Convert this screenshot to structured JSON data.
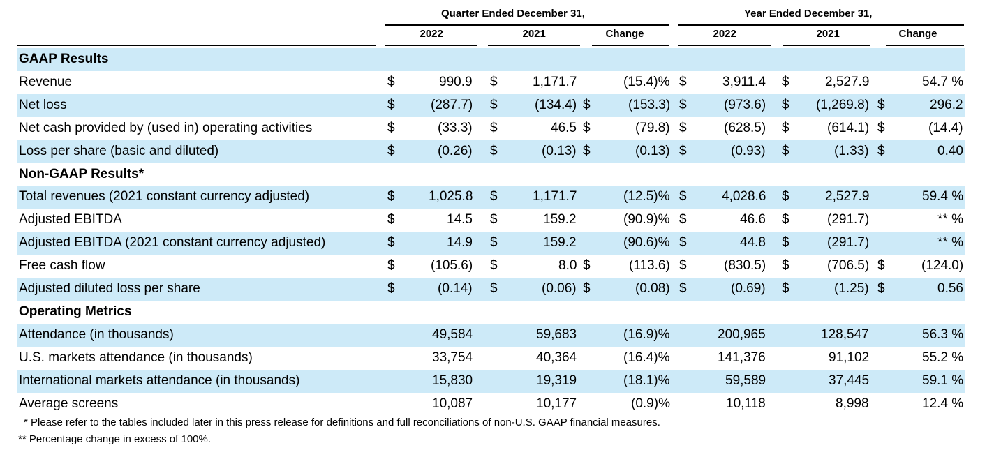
{
  "header": {
    "quarter_group": "Quarter Ended December 31,",
    "year_group": "Year Ended December 31,",
    "columns": [
      "2022",
      "2021",
      "Change",
      "2022",
      "2021",
      "Change"
    ]
  },
  "row_band_color": "#cdeaf8",
  "rows": [
    {
      "type": "section",
      "label": "GAAP Results"
    },
    {
      "type": "data",
      "label": "Revenue",
      "cells": [
        "$",
        "990.9",
        "$",
        "1,171.7",
        "",
        "(15.4)%",
        "$",
        "3,911.4",
        "$",
        "2,527.9",
        "",
        "54.7 %"
      ]
    },
    {
      "type": "data",
      "label": "Net loss",
      "cells": [
        "$",
        "(287.7)",
        "$",
        "(134.4)",
        "$",
        "(153.3)",
        "$",
        "(973.6)",
        "$",
        "(1,269.8)",
        "$",
        "296.2"
      ]
    },
    {
      "type": "data",
      "label": "Net cash provided by (used in) operating activities",
      "cells": [
        "$",
        "(33.3)",
        "$",
        "46.5",
        "$",
        "(79.8)",
        "$",
        "(628.5)",
        "$",
        "(614.1)",
        "$",
        "(14.4)"
      ]
    },
    {
      "type": "data",
      "label": "Loss per share (basic and diluted)",
      "cells": [
        "$",
        "(0.26)",
        "$",
        "(0.13)",
        "$",
        "(0.13)",
        "$",
        "(0.93)",
        "$",
        "(1.33)",
        "$",
        "0.40"
      ]
    },
    {
      "type": "section",
      "label": "Non-GAAP Results*"
    },
    {
      "type": "data",
      "label": "Total revenues (2021 constant currency adjusted)",
      "cells": [
        "$",
        "1,025.8",
        "$",
        "1,171.7",
        "",
        "(12.5)%",
        "$",
        "4,028.6",
        "$",
        "2,527.9",
        "",
        "59.4 %"
      ]
    },
    {
      "type": "data",
      "label": "Adjusted EBITDA",
      "cells": [
        "$",
        "14.5",
        "$",
        "159.2",
        "",
        "(90.9)%",
        "$",
        "46.6",
        "$",
        "(291.7)",
        "",
        "** %"
      ]
    },
    {
      "type": "data",
      "label": "Adjusted EBITDA (2021 constant currency adjusted)",
      "cells": [
        "$",
        "14.9",
        "$",
        "159.2",
        "",
        "(90.6)%",
        "$",
        "44.8",
        "$",
        "(291.7)",
        "",
        "** %"
      ]
    },
    {
      "type": "data",
      "label": "Free cash flow",
      "cells": [
        "$",
        "(105.6)",
        "$",
        "8.0",
        "$",
        "(113.6)",
        "$",
        "(830.5)",
        "$",
        "(706.5)",
        "$",
        "(124.0)"
      ]
    },
    {
      "type": "data",
      "label": "Adjusted diluted loss per share",
      "cells": [
        "$",
        "(0.14)",
        "$",
        "(0.06)",
        "$",
        "(0.08)",
        "$",
        "(0.69)",
        "$",
        "(1.25)",
        "$",
        "0.56"
      ]
    },
    {
      "type": "section",
      "label": "Operating Metrics"
    },
    {
      "type": "data",
      "label": "Attendance (in thousands)",
      "cells": [
        "",
        "49,584",
        "",
        "59,683",
        "",
        "(16.9)%",
        "",
        "200,965",
        "",
        "128,547",
        "",
        "56.3 %"
      ]
    },
    {
      "type": "data",
      "label": "U.S. markets attendance (in thousands)",
      "cells": [
        "",
        "33,754",
        "",
        "40,364",
        "",
        "(16.4)%",
        "",
        "141,376",
        "",
        "91,102",
        "",
        "55.2 %"
      ]
    },
    {
      "type": "data",
      "label": "International markets attendance (in thousands)",
      "cells": [
        "",
        "15,830",
        "",
        "19,319",
        "",
        "(18.1)%",
        "",
        "59,589",
        "",
        "37,445",
        "",
        "59.1 %"
      ]
    },
    {
      "type": "data",
      "label": "Average screens",
      "cells": [
        "",
        "10,087",
        "",
        "10,177",
        "",
        "(0.9)%",
        "",
        "10,118",
        "",
        "8,998",
        "",
        "12.4 %"
      ]
    }
  ],
  "footnotes": [
    "* Please refer to the tables included later in this press release for definitions and full reconciliations of non-U.S. GAAP financial measures.",
    "** Percentage change in excess of 100%."
  ]
}
